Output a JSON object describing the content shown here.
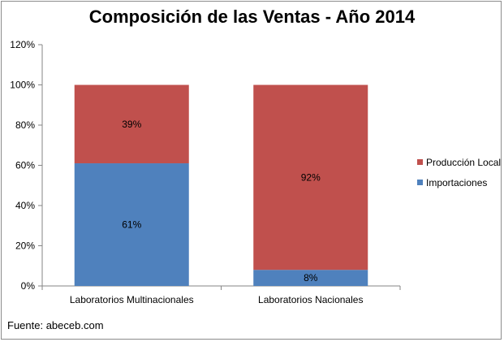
{
  "chart_data": {
    "type": "bar",
    "stacked": true,
    "percent_stacked": true,
    "title": "Composición de las Ventas - Año 2014",
    "xlabel": "",
    "ylabel": "",
    "categories": [
      "Laboratorios Multinacionales",
      "Laboratorios Nacionales"
    ],
    "series": [
      {
        "name": "Importaciones",
        "values": [
          61,
          8
        ],
        "labels": [
          "61%",
          "8%"
        ],
        "color": "#4f81bd"
      },
      {
        "name": "Producción Local",
        "values": [
          39,
          92
        ],
        "labels": [
          "39%",
          "92%"
        ],
        "color": "#c0504d"
      }
    ],
    "y_ticks": [
      "0%",
      "20%",
      "40%",
      "60%",
      "80%",
      "100%",
      "120%"
    ],
    "ylim": [
      0,
      120
    ],
    "grid": false,
    "legend_position": "right"
  },
  "footer": {
    "source": "Fuente: abeceb.com"
  }
}
